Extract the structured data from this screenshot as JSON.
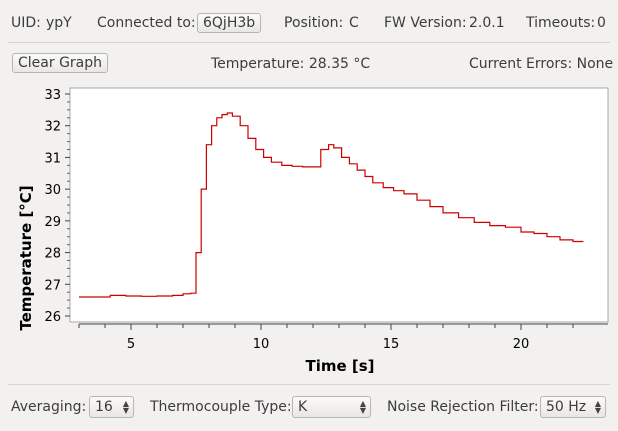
{
  "status_bar": {
    "uid_label": "UID:",
    "uid_value": "ypY",
    "connected_label": "Connected to:",
    "connected_value": "6QjH3b",
    "position_label": "Position:",
    "position_value": "C",
    "fw_label": "FW Version:",
    "fw_value": "2.0.1",
    "timeouts_label": "Timeouts:",
    "timeouts_value": "0"
  },
  "toolbar": {
    "clear_graph_label": "Clear Graph",
    "temperature_text": "Temperature: 28.35 °C",
    "errors_text": "Current Errors: None"
  },
  "controls": {
    "averaging_label": "Averaging:",
    "averaging_value": "16",
    "thermocouple_label": "Thermocouple Type:",
    "thermocouple_value": "K",
    "noise_label": "Noise Rejection Filter:",
    "noise_value": "50 Hz"
  },
  "colors": {
    "line": "#cc0000",
    "background": "#f2f1f0"
  },
  "chart_data": {
    "type": "line",
    "xlabel": "Time [s]",
    "ylabel": "Temperature [°C]",
    "xlim": [
      3.0,
      23.0
    ],
    "ylim": [
      26.0,
      33.0
    ],
    "x_ticks": [
      5,
      10,
      15,
      20
    ],
    "y_ticks": [
      26,
      27,
      28,
      29,
      30,
      31,
      32,
      33
    ],
    "grid": false,
    "series": [
      {
        "values_x": [
          3.0,
          3.6,
          4.2,
          4.8,
          5.4,
          6.0,
          6.6,
          7.0,
          7.3,
          7.5,
          7.7,
          7.9,
          8.1,
          8.3,
          8.5,
          8.7,
          8.9,
          9.2,
          9.5,
          9.8,
          10.1,
          10.4,
          10.8,
          11.2,
          11.6,
          12.1,
          12.3,
          12.6,
          12.8,
          13.1,
          13.4,
          13.7,
          14.0,
          14.3,
          14.7,
          15.1,
          15.5,
          16.0,
          16.5,
          17.0,
          17.6,
          18.2,
          18.8,
          19.4,
          20.0,
          20.5,
          21.0,
          21.5,
          22.0,
          22.4
        ],
        "values_y": [
          26.6,
          26.6,
          26.65,
          26.63,
          26.62,
          26.63,
          26.65,
          26.7,
          26.72,
          28.0,
          30.0,
          31.4,
          32.0,
          32.25,
          32.35,
          32.4,
          32.3,
          32.0,
          31.6,
          31.25,
          31.0,
          30.85,
          30.75,
          30.72,
          30.7,
          30.7,
          31.25,
          31.4,
          31.3,
          31.0,
          30.8,
          30.6,
          30.4,
          30.2,
          30.05,
          29.95,
          29.85,
          29.65,
          29.45,
          29.25,
          29.1,
          28.95,
          28.85,
          28.8,
          28.65,
          28.6,
          28.5,
          28.4,
          28.35,
          28.35
        ]
      }
    ]
  }
}
